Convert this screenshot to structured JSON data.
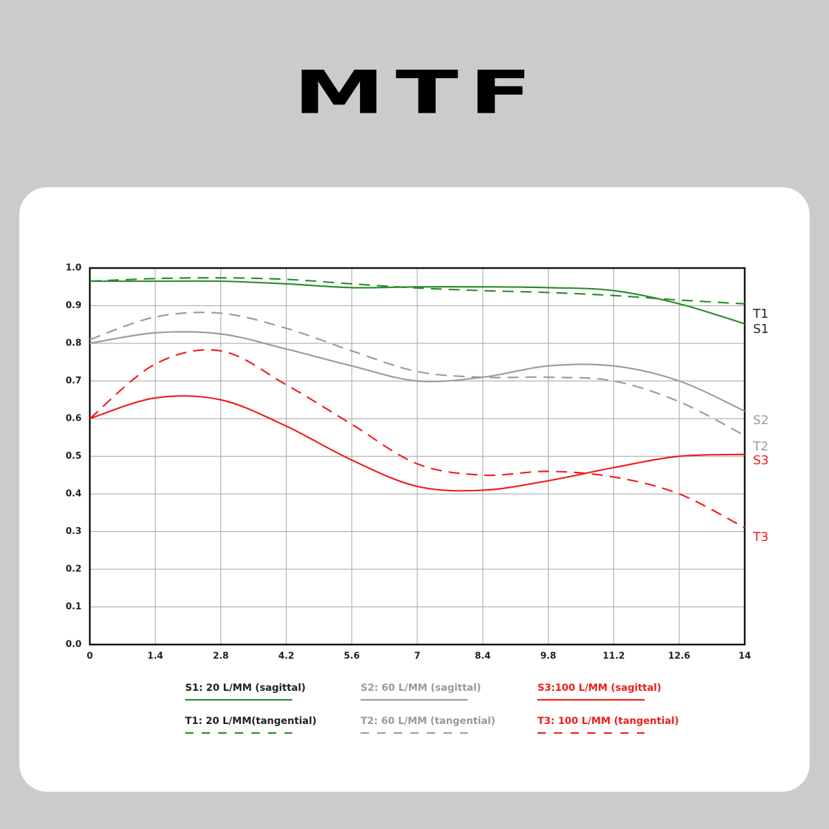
{
  "chart_data": {
    "type": "line",
    "title": "MTF",
    "x": [
      0,
      1.4,
      2.8,
      4.2,
      5.6,
      7,
      8.4,
      9.8,
      11.2,
      12.6,
      14
    ],
    "xlim": [
      0,
      14
    ],
    "xticks": [
      0,
      1.4,
      2.8,
      4.2,
      5.6,
      7,
      8.4,
      9.8,
      11.2,
      12.6,
      14
    ],
    "ylim": [
      0,
      1
    ],
    "yticks": [
      {
        "value": 0,
        "label": "0.0"
      },
      0.1,
      0.2,
      0.3,
      0.4,
      0.5,
      0.6,
      0.7,
      0.8,
      0.9,
      {
        "value": 1,
        "label": "1.0"
      }
    ],
    "grid": true,
    "series": [
      {
        "name": "S1: 20 L/MM (sagittal)",
        "label": "S1",
        "color": "#2a8a2a",
        "label_color": "#222222",
        "dashed": false,
        "values": [
          0.965,
          0.965,
          0.965,
          0.958,
          0.948,
          0.95,
          0.95,
          0.948,
          0.94,
          0.905,
          0.852
        ]
      },
      {
        "name": "T1: 20 L/MM(tangential)",
        "label": "T1",
        "color": "#2a8a2a",
        "label_color": "#222222",
        "dashed": true,
        "values": [
          0.965,
          0.972,
          0.974,
          0.97,
          0.958,
          0.947,
          0.94,
          0.935,
          0.927,
          0.915,
          0.905
        ]
      },
      {
        "name": "S2: 60 L/MM (sagittal)",
        "label": "S2",
        "color": "#9a9a9a",
        "label_color": "#9a9a9a",
        "dashed": false,
        "values": [
          0.8,
          0.828,
          0.825,
          0.785,
          0.74,
          0.7,
          0.71,
          0.74,
          0.74,
          0.7,
          0.62
        ]
      },
      {
        "name": "T2: 60 L/MM (tangential)",
        "label": "T2",
        "color": "#9a9a9a",
        "label_color": "#9a9a9a",
        "dashed": true,
        "values": [
          0.81,
          0.87,
          0.88,
          0.84,
          0.78,
          0.725,
          0.71,
          0.71,
          0.7,
          0.645,
          0.555
        ]
      },
      {
        "name": "S3:100 L/MM (sagittal)",
        "label": "S3",
        "color": "#f01c1c",
        "label_color": "#f01c1c",
        "dashed": false,
        "values": [
          0.6,
          0.655,
          0.65,
          0.58,
          0.49,
          0.42,
          0.41,
          0.435,
          0.47,
          0.5,
          0.505
        ]
      },
      {
        "name": "T3: 100 L/MM (tangential)",
        "label": "T3",
        "color": "#f01c1c",
        "label_color": "#f01c1c",
        "dashed": true,
        "values": [
          0.6,
          0.745,
          0.78,
          0.69,
          0.585,
          0.48,
          0.45,
          0.46,
          0.445,
          0.4,
          0.31
        ]
      }
    ]
  }
}
